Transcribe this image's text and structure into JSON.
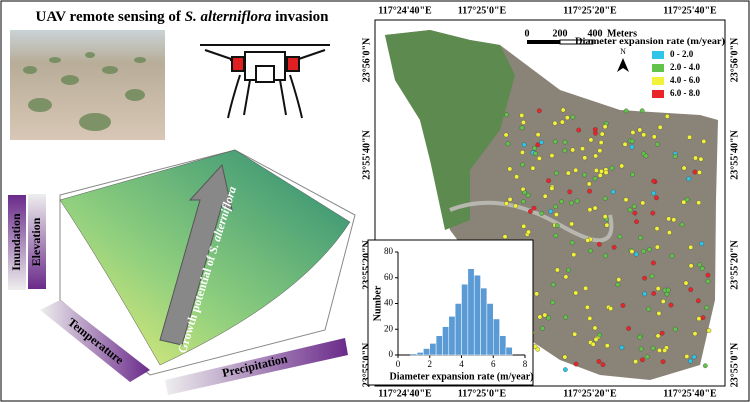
{
  "title": {
    "pre": "UAV remote sensing of ",
    "species": "S. alterniflora",
    "post": " invasion"
  },
  "drivers": {
    "inundation": "Inundation",
    "elevation": "Elevation",
    "temperature": "Temperature",
    "precipitation": "Precipitation"
  },
  "arrow_label": {
    "pre": "Growth potential of ",
    "species": "S. alterniflora"
  },
  "map": {
    "lon_labels": [
      "117°24'40\"E",
      "117°25'0\"E",
      "117°25'20\"E",
      "117°25'40\"E"
    ],
    "lat_labels": [
      "23°56'0\"N",
      "23°55'40\"N",
      "23°55'20\"N",
      "23°55'0\"N"
    ],
    "scale": [
      "0",
      "200",
      "400",
      "Meters"
    ],
    "north": "N",
    "legend": {
      "title": "Diameter expansion rate (m/year)",
      "items": [
        {
          "label": "0 - 2.0",
          "color": "#2ec5e8"
        },
        {
          "label": "2.0 - 4.0",
          "color": "#62c24a"
        },
        {
          "label": "4.0 - 6.0",
          "color": "#f2f23a"
        },
        {
          "label": "6.0 - 8.0",
          "color": "#e8262a"
        }
      ]
    }
  },
  "chart_data": {
    "type": "histogram",
    "xlabel": "Diameter expansion rate (m/year)",
    "ylabel": "Number",
    "color": "#5b9bd5",
    "bins": [
      0.8,
      1.2,
      1.6,
      2.0,
      2.4,
      2.8,
      3.2,
      3.6,
      4.0,
      4.4,
      4.8,
      5.2,
      5.6,
      6.0,
      6.4,
      6.8,
      7.2
    ],
    "values": [
      1,
      2,
      5,
      9,
      15,
      22,
      30,
      40,
      55,
      67,
      62,
      52,
      40,
      28,
      15,
      6
    ],
    "xlim": [
      0,
      8
    ],
    "xticks": [
      0,
      2,
      4,
      6,
      8
    ],
    "ylim": [
      0,
      80
    ],
    "yticks": [
      0,
      20,
      40,
      60,
      80
    ]
  }
}
